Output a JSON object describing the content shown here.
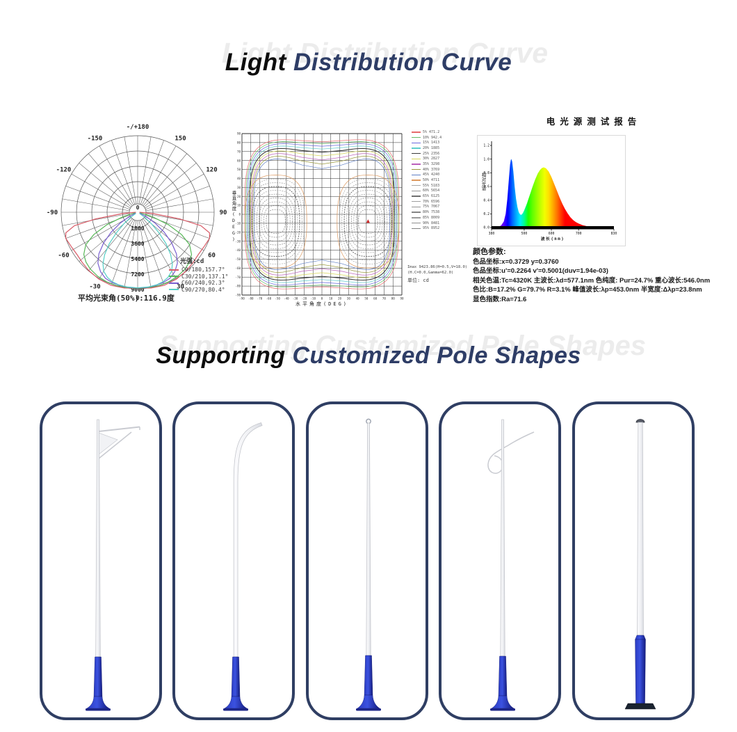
{
  "sections": {
    "light": {
      "title_black": "Light",
      "title_navy": "Distribution Curve",
      "watermark": "Light Distribution Curve"
    },
    "poles": {
      "title_black": "Supporting",
      "title_navy": "Customized Pole Shapes",
      "watermark": "Supporting Customized Pole Shapes"
    }
  },
  "chart_data": [
    {
      "type": "line",
      "coordinate": "polar",
      "name": "luminous-intensity-distribution",
      "legend_title": "光强:cd",
      "caption": "平均光束角(50%):116.9度",
      "angle_tick_labels": [
        "-/+180",
        "-150",
        "150",
        "-120",
        "120",
        "-90",
        "90",
        "-60",
        "60",
        "-30",
        "30",
        "0"
      ],
      "radial_ticks": [
        1800,
        3600,
        5400,
        7200,
        9000
      ],
      "radial_max": 9000,
      "series": [
        {
          "name": "C0/180,157.7°",
          "color": "#d85a66",
          "points": [
            [
              -90,
              200
            ],
            [
              -85,
              1800
            ],
            [
              -81,
              5000
            ],
            [
              -78,
              7600
            ],
            [
              -74,
              8800
            ],
            [
              -70,
              9000
            ],
            [
              -62,
              8780
            ],
            [
              -55,
              8700
            ],
            [
              -48,
              8800
            ],
            [
              -40,
              8950
            ],
            [
              -30,
              9100
            ],
            [
              -20,
              9150
            ],
            [
              -10,
              9050
            ],
            [
              0,
              8930
            ],
            [
              10,
              9050
            ],
            [
              20,
              9150
            ],
            [
              30,
              9100
            ],
            [
              40,
              8950
            ],
            [
              48,
              8800
            ],
            [
              55,
              8700
            ],
            [
              62,
              8780
            ],
            [
              70,
              9000
            ],
            [
              74,
              8800
            ],
            [
              78,
              7600
            ],
            [
              81,
              5000
            ],
            [
              85,
              1800
            ],
            [
              90,
              200
            ]
          ]
        },
        {
          "name": "C30/210,137.1°",
          "color": "#58b858",
          "points": [
            [
              -78,
              300
            ],
            [
              -73,
              1800
            ],
            [
              -68,
              3900
            ],
            [
              -63,
              5800
            ],
            [
              -58,
              7200
            ],
            [
              -52,
              8050
            ],
            [
              -46,
              8450
            ],
            [
              -40,
              8700
            ],
            [
              -32,
              8880
            ],
            [
              -24,
              8960
            ],
            [
              -16,
              8980
            ],
            [
              -8,
              8950
            ],
            [
              0,
              8930
            ],
            [
              8,
              8950
            ],
            [
              16,
              8980
            ],
            [
              24,
              8960
            ],
            [
              32,
              8880
            ],
            [
              40,
              8700
            ],
            [
              46,
              8450
            ],
            [
              52,
              8050
            ],
            [
              58,
              7200
            ],
            [
              63,
              5800
            ],
            [
              68,
              3900
            ],
            [
              73,
              1800
            ],
            [
              78,
              300
            ]
          ]
        },
        {
          "name": "C60/240,92.3°",
          "color": "#7a5fd0",
          "points": [
            [
              -68,
              250
            ],
            [
              -63,
              1100
            ],
            [
              -58,
              2400
            ],
            [
              -53,
              3900
            ],
            [
              -48,
              5400
            ],
            [
              -43,
              6700
            ],
            [
              -38,
              7600
            ],
            [
              -32,
              8250
            ],
            [
              -26,
              8650
            ],
            [
              -20,
              8800
            ],
            [
              -14,
              8870
            ],
            [
              -7,
              8900
            ],
            [
              0,
              8900
            ],
            [
              7,
              8900
            ],
            [
              14,
              8870
            ],
            [
              20,
              8800
            ],
            [
              26,
              8650
            ],
            [
              32,
              8250
            ],
            [
              38,
              7600
            ],
            [
              43,
              6700
            ],
            [
              48,
              5400
            ],
            [
              53,
              3900
            ],
            [
              58,
              2400
            ],
            [
              63,
              1100
            ],
            [
              68,
              250
            ]
          ]
        },
        {
          "name": "C90/270,80.4°",
          "color": "#55cfc6",
          "points": [
            [
              -58,
              250
            ],
            [
              -54,
              1000
            ],
            [
              -50,
              2100
            ],
            [
              -46,
              3500
            ],
            [
              -42,
              5000
            ],
            [
              -38,
              6300
            ],
            [
              -34,
              7300
            ],
            [
              -30,
              8000
            ],
            [
              -25,
              8450
            ],
            [
              -20,
              8700
            ],
            [
              -15,
              8820
            ],
            [
              -8,
              8870
            ],
            [
              0,
              8890
            ],
            [
              8,
              8870
            ],
            [
              15,
              8820
            ],
            [
              20,
              8700
            ],
            [
              25,
              8450
            ],
            [
              30,
              8000
            ],
            [
              34,
              7300
            ],
            [
              38,
              6300
            ],
            [
              42,
              5000
            ],
            [
              46,
              3500
            ],
            [
              50,
              2100
            ],
            [
              54,
              1000
            ],
            [
              58,
              250
            ]
          ]
        }
      ]
    },
    {
      "type": "heatmap",
      "subtype": "isocandela-contour",
      "name": "isocandela-diagram",
      "xlabel": "水平角度(DEG)",
      "ylabel": "垂直角度(DEG)",
      "x_range": [
        -90,
        90
      ],
      "y_range": [
        -90,
        90
      ],
      "grid_step": 10,
      "levels": [
        {
          "percent": "5%",
          "value": "471.2",
          "color": "#e76b6b"
        },
        {
          "percent": "10%",
          "value": "942.4",
          "color": "#66bb66"
        },
        {
          "percent": "15%",
          "value": "1413",
          "color": "#6a6ade"
        },
        {
          "percent": "20%",
          "value": "1885",
          "color": "#5ecccc"
        },
        {
          "percent": "25%",
          "value": "2356",
          "color": "#3c3c3c"
        },
        {
          "percent": "30%",
          "value": "2827",
          "color": "#d6d65a"
        },
        {
          "percent": "35%",
          "value": "3298",
          "color": "#bb5fbb"
        },
        {
          "percent": "40%",
          "value": "3769",
          "color": "#99993d"
        },
        {
          "percent": "45%",
          "value": "4240",
          "color": "#5f7fc4"
        },
        {
          "percent": "50%",
          "value": "4711",
          "color": "#dd995f"
        },
        {
          "percent": "55%",
          "value": "5183",
          "color": "#a8a8a8"
        },
        {
          "percent": "60%",
          "value": "5654",
          "color": "#979797"
        },
        {
          "percent": "65%",
          "value": "6125",
          "color": "#6e6e6e"
        },
        {
          "percent": "70%",
          "value": "6596",
          "color": "#9f9f9f"
        },
        {
          "percent": "75%",
          "value": "7067",
          "color": "#929292"
        },
        {
          "percent": "80%",
          "value": "7538",
          "color": "#858585"
        },
        {
          "percent": "85%",
          "value": "8009",
          "color": "#9b9b9b"
        },
        {
          "percent": "90%",
          "value": "8481",
          "color": "#8e8e8e"
        },
        {
          "percent": "95%",
          "value": "8952",
          "color": "#818181"
        }
      ],
      "notes": [
        "Imax 9423.86(H=0.5,V=18.0)",
        "(H.C=0.0,Gamma=62.0)",
        "单位: cd"
      ]
    },
    {
      "type": "area",
      "name": "spectral-power-distribution",
      "title": "电光源测试报告",
      "xlabel": "波长(nm)",
      "ylabel": "相对光谱",
      "xlim": [
        380,
        830
      ],
      "ylim": [
        0,
        1.2
      ],
      "x_ticks": [
        380,
        500,
        600,
        700,
        830
      ],
      "y_ticks": [
        0.0,
        0.2,
        0.4,
        0.6,
        0.8,
        1.0,
        1.2
      ],
      "peak_wavelength_nm": 453.0,
      "peak_value": 1.0,
      "secondary_peak_nm": 570,
      "secondary_peak_value": 0.88,
      "points": [
        [
          380,
          0.002
        ],
        [
          395,
          0.005
        ],
        [
          405,
          0.012
        ],
        [
          415,
          0.03
        ],
        [
          425,
          0.09
        ],
        [
          432,
          0.2
        ],
        [
          438,
          0.42
        ],
        [
          444,
          0.72
        ],
        [
          448,
          0.92
        ],
        [
          451,
          0.99
        ],
        [
          453,
          1.0
        ],
        [
          456,
          0.96
        ],
        [
          460,
          0.82
        ],
        [
          465,
          0.6
        ],
        [
          470,
          0.42
        ],
        [
          475,
          0.3
        ],
        [
          480,
          0.225
        ],
        [
          485,
          0.19
        ],
        [
          490,
          0.185
        ],
        [
          495,
          0.21
        ],
        [
          500,
          0.25
        ],
        [
          510,
          0.35
        ],
        [
          520,
          0.47
        ],
        [
          530,
          0.59
        ],
        [
          540,
          0.7
        ],
        [
          550,
          0.79
        ],
        [
          558,
          0.84
        ],
        [
          565,
          0.87
        ],
        [
          572,
          0.88
        ],
        [
          580,
          0.865
        ],
        [
          590,
          0.82
        ],
        [
          600,
          0.74
        ],
        [
          610,
          0.64
        ],
        [
          620,
          0.54
        ],
        [
          630,
          0.44
        ],
        [
          640,
          0.35
        ],
        [
          650,
          0.27
        ],
        [
          660,
          0.205
        ],
        [
          670,
          0.15
        ],
        [
          680,
          0.11
        ],
        [
          690,
          0.08
        ],
        [
          700,
          0.058
        ],
        [
          715,
          0.035
        ],
        [
          730,
          0.02
        ],
        [
          745,
          0.012
        ],
        [
          760,
          0.007
        ],
        [
          780,
          0.003
        ],
        [
          830,
          0.001
        ]
      ]
    }
  ],
  "spectrum_report": {
    "lines": [
      "颜色参数:",
      "色品坐标:x=0.3729  y=0.3760",
      "色品坐标:u'=0.2264  v'=0.5001(duv=1.94e-03)",
      "相关色温:Tc=4320K  主波长:λd=577.1nm  色纯度: Pur=24.7%  重心波长:546.0nm",
      "色比:B=17.2% G=79.7% R=3.1%  峰值波长:λp=453.0nm  半宽度:Δλp=23.8nm",
      "显色指数:Ra=71.6"
    ]
  },
  "pole_shapes": [
    "single-arm-straight-pole",
    "tapered-curved-arm-pole",
    "plain-straight-pole",
    "scroll-arm-pole",
    "straight-pole-heavy-base"
  ]
}
